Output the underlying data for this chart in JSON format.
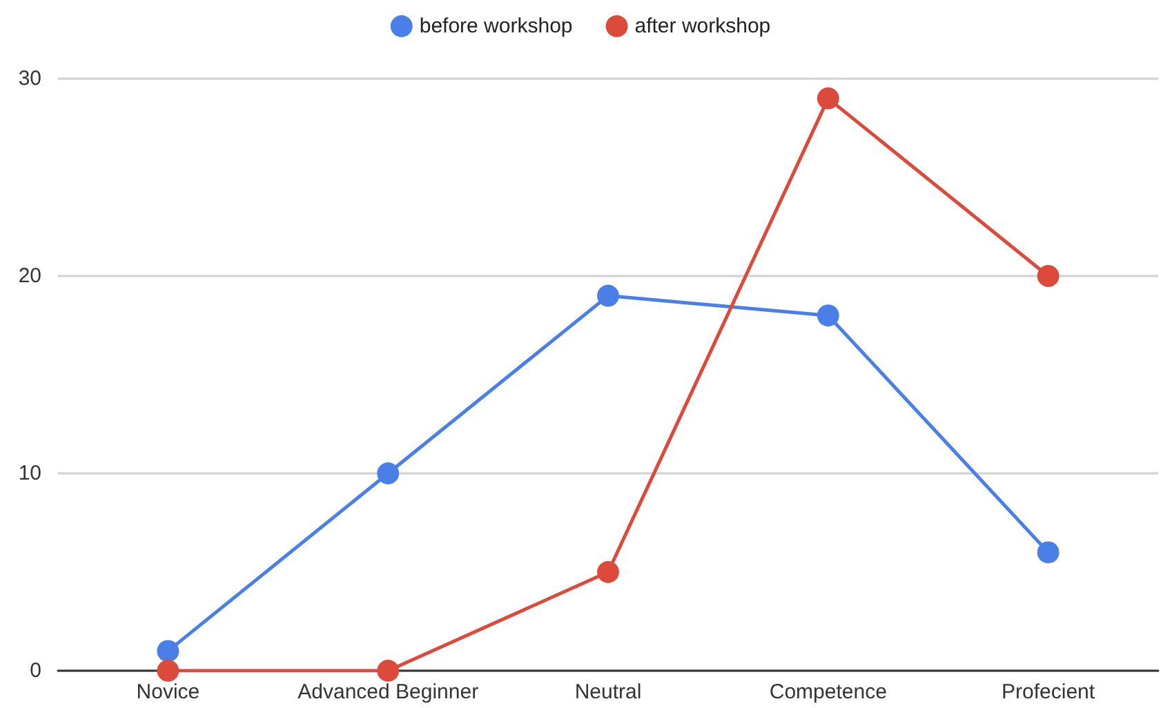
{
  "chart_data": {
    "type": "line",
    "categories": [
      "Novice",
      "Advanced Beginner",
      "Neutral",
      "Competence",
      "Profecient"
    ],
    "series": [
      {
        "name": "before workshop",
        "color": "#4a7fe8",
        "values": [
          1,
          10,
          19,
          18,
          6
        ]
      },
      {
        "name": "after workshop",
        "color": "#db4a3a",
        "values": [
          0,
          0,
          5,
          29,
          20
        ]
      }
    ],
    "ylim": [
      0,
      30
    ],
    "yticks": [
      0,
      10,
      20,
      30
    ],
    "grid": "y",
    "legend": "top",
    "marker": "circle",
    "line_style": "solid"
  }
}
